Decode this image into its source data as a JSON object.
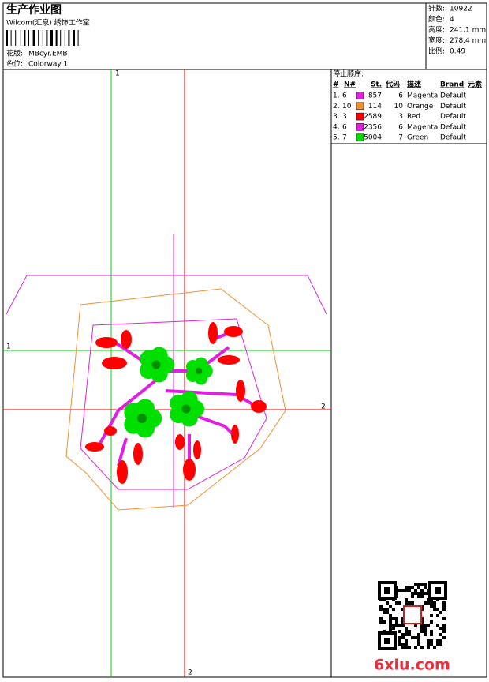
{
  "header": {
    "title": "生产作业图",
    "company": "Wilcom(汇泉) 绣饰工作室",
    "design_label": "花版:",
    "design": "MBcyr.EMB",
    "colorway_label": "色位:",
    "colorway": "Colorway 1"
  },
  "stats": [
    {
      "label": "针数:",
      "value": "10922"
    },
    {
      "label": "颜色:",
      "value": "4"
    },
    {
      "label": "高度:",
      "value": "241.1 mm"
    },
    {
      "label": "宽度:",
      "value": "278.4 mm"
    },
    {
      "label": "比例:",
      "value": "0.49"
    }
  ],
  "stop_sequence": {
    "title": "停止顺序:",
    "columns": [
      "#",
      "N#",
      "St.",
      "代码",
      "描述",
      "Brand",
      "元素"
    ],
    "rows": [
      {
        "index": "1.",
        "needle": "6",
        "color": "#e020e0",
        "stitches": "857",
        "code": "6",
        "description": "Magenta",
        "brand": "Default"
      },
      {
        "index": "2.",
        "needle": "10",
        "color": "#f09030",
        "stitches": "114",
        "code": "10",
        "description": "Orange",
        "brand": "Default"
      },
      {
        "index": "3.",
        "needle": "3",
        "color": "#ff0000",
        "stitches": "2589",
        "code": "3",
        "description": "Red",
        "brand": "Default"
      },
      {
        "index": "4.",
        "needle": "6",
        "color": "#e020e0",
        "stitches": "2356",
        "code": "6",
        "description": "Magenta",
        "brand": "Default"
      },
      {
        "index": "5.",
        "needle": "7",
        "color": "#00e000",
        "stitches": "5004",
        "code": "7",
        "description": "Green",
        "brand": "Default"
      }
    ]
  },
  "guides": {
    "v1": "1",
    "h1": "1",
    "h2": "2",
    "v2": "2"
  },
  "watermark": "6xiu.com"
}
